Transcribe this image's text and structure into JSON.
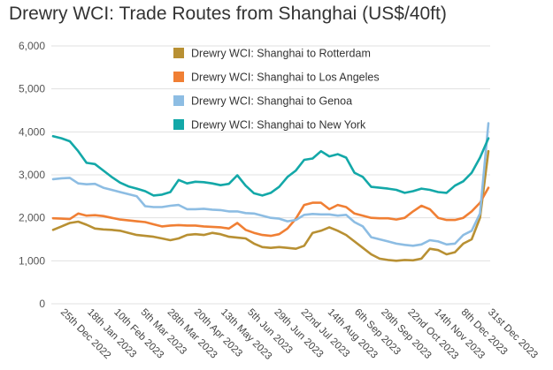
{
  "chart_data": {
    "type": "line",
    "title": "Drewry WCI: Trade Routes from Shanghai (US$/40ft)",
    "xlabel": "",
    "ylabel": "",
    "ylim": [
      0,
      6000
    ],
    "yticks": [
      0,
      1000,
      2000,
      3000,
      4000,
      5000,
      6000
    ],
    "ytick_labels": [
      "0",
      "1,000",
      "2,000",
      "3,000",
      "4,000",
      "5,000",
      "6,000"
    ],
    "grid": true,
    "legend_position": "top-center",
    "x_tick_labels": [
      "25th Dec 2022",
      "18th Jan 2023",
      "10th Feb 2023",
      "5th Mar 2023",
      "28th Mar 2023",
      "20th Apr 2023",
      "13th May 2023",
      "5th Jun 2023",
      "29th Jun 2023",
      "22nd Jul 2023",
      "14th Aug 2023",
      "6th Sep 2023",
      "29th Sep 2023",
      "22nd Oct 2023",
      "14th Nov 2023",
      "8th Dec 2023",
      "31st Dec 2023"
    ],
    "series": [
      {
        "name": "Drewry WCI: Shanghai to Rotterdam",
        "color": "#b89033",
        "values": [
          1720,
          1800,
          1880,
          1910,
          1840,
          1750,
          1730,
          1720,
          1700,
          1650,
          1600,
          1580,
          1560,
          1520,
          1480,
          1520,
          1600,
          1620,
          1600,
          1650,
          1620,
          1560,
          1540,
          1520,
          1400,
          1320,
          1300,
          1320,
          1300,
          1280,
          1350,
          1650,
          1700,
          1780,
          1700,
          1600,
          1450,
          1300,
          1150,
          1050,
          1020,
          1000,
          1020,
          1010,
          1050,
          1280,
          1250,
          1150,
          1200,
          1400,
          1500,
          2000,
          3550
        ]
      },
      {
        "name": "Drewry WCI: Shanghai to Los Angeles",
        "color": "#f07f34",
        "values": [
          1990,
          1980,
          1970,
          2100,
          2050,
          2060,
          2040,
          2000,
          1960,
          1940,
          1920,
          1900,
          1850,
          1800,
          1820,
          1830,
          1820,
          1820,
          1800,
          1790,
          1780,
          1750,
          1880,
          1720,
          1650,
          1600,
          1580,
          1620,
          1750,
          1980,
          2300,
          2350,
          2350,
          2200,
          2300,
          2250,
          2100,
          2050,
          2000,
          1990,
          1990,
          1960,
          2000,
          2150,
          2280,
          2200,
          2000,
          1950,
          1950,
          2000,
          2150,
          2350,
          2700
        ]
      },
      {
        "name": "Drewry WCI: Shanghai to Genoa",
        "color": "#8dbde3",
        "values": [
          2900,
          2920,
          2930,
          2800,
          2780,
          2790,
          2700,
          2650,
          2600,
          2550,
          2500,
          2270,
          2250,
          2250,
          2280,
          2300,
          2200,
          2200,
          2210,
          2190,
          2180,
          2150,
          2150,
          2110,
          2100,
          2050,
          2000,
          1980,
          1920,
          1950,
          2070,
          2090,
          2080,
          2080,
          2050,
          2070,
          1900,
          1800,
          1550,
          1500,
          1450,
          1400,
          1370,
          1350,
          1380,
          1480,
          1450,
          1380,
          1400,
          1600,
          1700,
          2100,
          4200
        ]
      },
      {
        "name": "Drewry WCI: Shanghai to New York",
        "color": "#13a8a8",
        "values": [
          3900,
          3850,
          3780,
          3550,
          3280,
          3250,
          3100,
          2950,
          2820,
          2730,
          2680,
          2620,
          2520,
          2540,
          2600,
          2880,
          2800,
          2840,
          2830,
          2800,
          2760,
          2790,
          2990,
          2750,
          2570,
          2520,
          2580,
          2720,
          2950,
          3100,
          3350,
          3380,
          3550,
          3430,
          3480,
          3400,
          3050,
          2950,
          2720,
          2700,
          2680,
          2650,
          2580,
          2620,
          2680,
          2650,
          2600,
          2580,
          2750,
          2850,
          3050,
          3400,
          3850
        ]
      }
    ]
  }
}
